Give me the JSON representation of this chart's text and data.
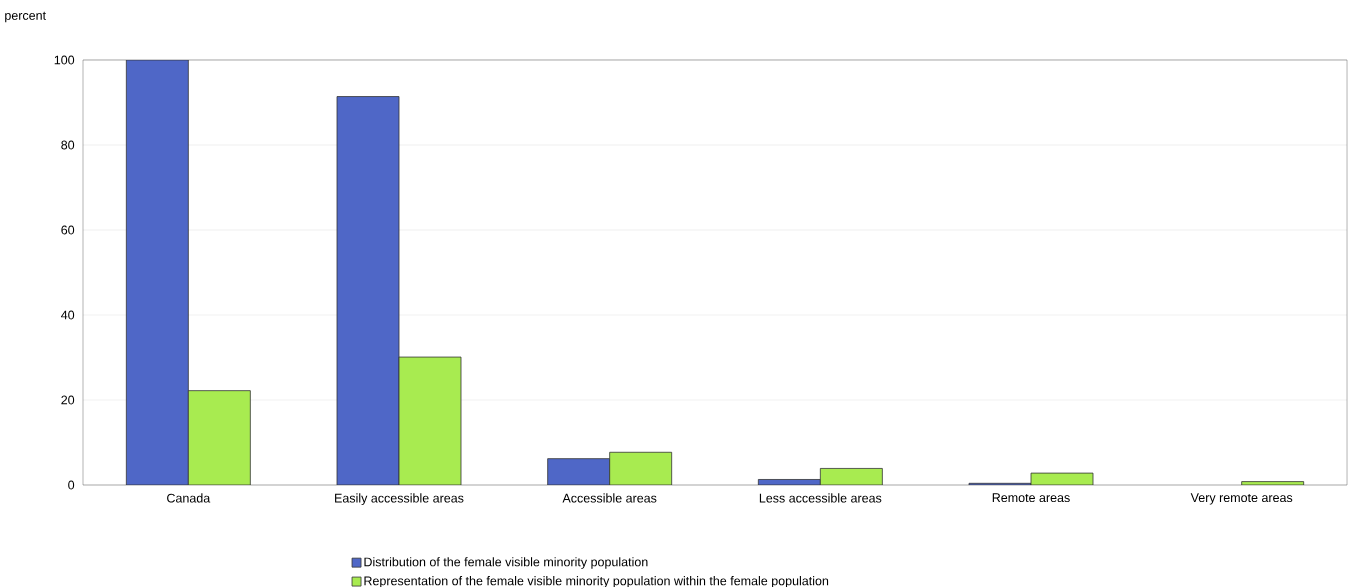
{
  "chart_data": {
    "type": "bar",
    "ylabel": "percent",
    "categories": [
      "Canada",
      "Easily accessible areas",
      "Accessible areas",
      "Less accessible areas",
      "Remote areas",
      "Very remote areas"
    ],
    "series": [
      {
        "name": "Distribution of the female visible minority population",
        "color": "#4f67c7",
        "values": [
          100,
          91.4,
          6.2,
          1.3,
          0.4,
          null
        ]
      },
      {
        "name": "Representation of the female visible minority population within the female population",
        "color": "#a8eb50",
        "values": [
          22.2,
          30.1,
          7.7,
          3.9,
          2.8,
          0.8
        ]
      }
    ],
    "ylim": [
      0,
      100
    ],
    "yticks": [
      0,
      20,
      40,
      60,
      80,
      100
    ],
    "grid": "y",
    "legend": "bottom"
  }
}
